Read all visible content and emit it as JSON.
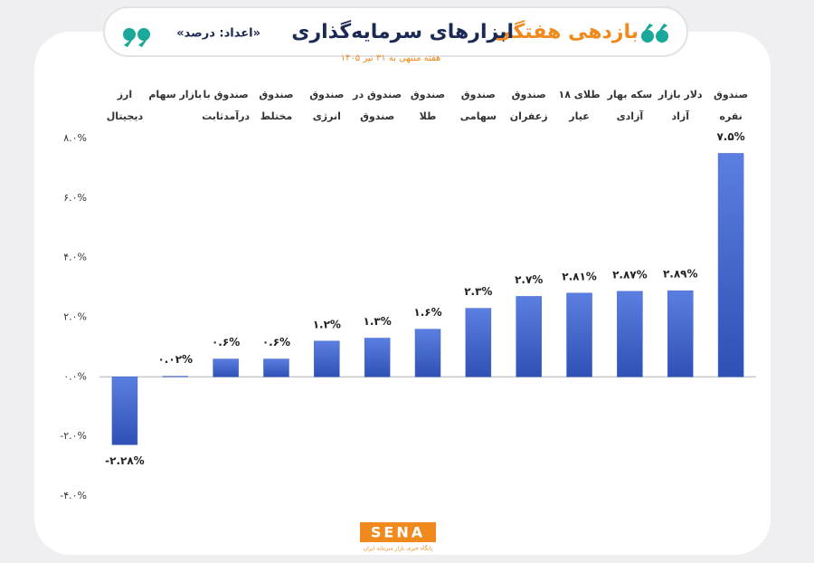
{
  "chart_data": {
    "type": "bar",
    "title_accent": "بازدهی هفتگی",
    "title": "ابزارهای سرمایه‌گذاری",
    "title_note": "«اعداد: درصد»",
    "subtitle": "هفته منتهی به ۳۱ تیر ۱۴۰۵",
    "categories": [
      [
        "ارز",
        "دیجیتال"
      ],
      [
        "بازار سهام"
      ],
      [
        "صندوق با",
        "درآمدثابت"
      ],
      [
        "صندوق",
        "مختلط"
      ],
      [
        "صندوق",
        "انرژی"
      ],
      [
        "صندوق در",
        "صندوق"
      ],
      [
        "صندوق",
        "طلا"
      ],
      [
        "صندوق",
        "سهامی"
      ],
      [
        "صندوق",
        "زعفران"
      ],
      [
        "طلای ۱۸",
        "عیار"
      ],
      [
        "سکه بهار",
        "آزادی"
      ],
      [
        "دلار بازار",
        "آزاد"
      ],
      [
        "صندوق",
        "نقره"
      ]
    ],
    "values": [
      -2.28,
      0.02,
      0.6,
      0.6,
      1.2,
      1.3,
      1.6,
      2.3,
      2.7,
      2.81,
      2.87,
      2.89,
      7.5
    ],
    "value_labels": [
      "-۲.۲۸%",
      "۰.۰۲%",
      "۰.۶%",
      "۰.۶%",
      "۱.۲%",
      "۱.۳%",
      "۱.۶%",
      "۲.۳%",
      "۲.۷%",
      "۲.۸۱%",
      "۲.۸۷%",
      "۲.۸۹%",
      "۷.۵%"
    ],
    "color": "#3f63c9",
    "ylim": [
      -4,
      8
    ],
    "yticks": [
      {
        "value": -4,
        "label": "-۴.۰%"
      },
      {
        "value": -2,
        "label": "-۲.۰%"
      },
      {
        "value": 0,
        "label": "۰.۰%"
      },
      {
        "value": 2,
        "label": "۲.۰%"
      },
      {
        "value": 4,
        "label": "۴.۰%"
      },
      {
        "value": 6,
        "label": "۶.۰%"
      },
      {
        "value": 8,
        "label": "۸.۰%"
      }
    ],
    "logo": "SENA",
    "logo_caption": "پایگاه خبری بازار سرمایه ایران"
  }
}
